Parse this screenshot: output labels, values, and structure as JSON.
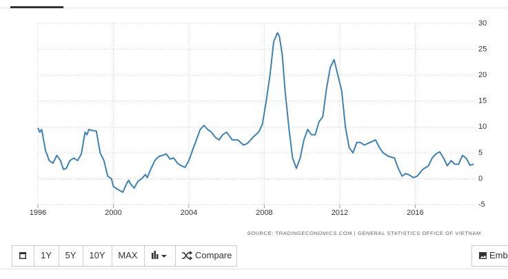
{
  "chart_data": {
    "type": "line",
    "x": [
      1996.0,
      1996.1,
      1996.2,
      1996.4,
      1996.6,
      1996.8,
      1997.0,
      1997.2,
      1997.35,
      1997.5,
      1997.7,
      1997.9,
      1998.1,
      1998.3,
      1998.5,
      1998.6,
      1998.7,
      1998.9,
      1999.1,
      1999.3,
      1999.5,
      1999.7,
      1999.9,
      2000.0,
      2000.2,
      2000.5,
      2000.7,
      2000.8,
      2000.95,
      2001.1,
      2001.3,
      2001.5,
      2001.7,
      2001.8,
      2002.0,
      2002.2,
      2002.4,
      2002.6,
      2002.8,
      2003.0,
      2003.2,
      2003.4,
      2003.6,
      2003.8,
      2004.0,
      2004.2,
      2004.4,
      2004.6,
      2004.8,
      2005.0,
      2005.2,
      2005.4,
      2005.6,
      2005.8,
      2006.0,
      2006.3,
      2006.6,
      2006.9,
      2007.1,
      2007.4,
      2007.7,
      2007.9,
      2008.1,
      2008.3,
      2008.5,
      2008.7,
      2008.8,
      2008.95,
      2009.1,
      2009.3,
      2009.5,
      2009.7,
      2009.9,
      2010.1,
      2010.3,
      2010.5,
      2010.7,
      2010.9,
      2011.1,
      2011.3,
      2011.5,
      2011.7,
      2011.9,
      2012.1,
      2012.3,
      2012.5,
      2012.7,
      2012.9,
      2013.1,
      2013.3,
      2013.6,
      2013.9,
      2014.1,
      2014.3,
      2014.6,
      2014.9,
      2015.1,
      2015.3,
      2015.5,
      2015.7,
      2015.9,
      2016.1,
      2016.4,
      2016.7,
      2016.9,
      2017.1,
      2017.3,
      2017.5,
      2017.7,
      2017.9,
      2018.1,
      2018.3,
      2018.5,
      2018.7,
      2018.9,
      2019.1
    ],
    "series": [
      {
        "color": "#3b81b4",
        "values": [
          9.8,
          9.0,
          9.5,
          5.5,
          3.5,
          3.0,
          4.5,
          3.5,
          1.8,
          2.0,
          3.5,
          4.0,
          3.5,
          4.8,
          9.0,
          8.5,
          9.5,
          9.3,
          9.2,
          5.0,
          3.5,
          0.5,
          0.0,
          -1.5,
          -2.0,
          -2.6,
          -1.0,
          -0.3,
          -1.2,
          -1.8,
          -0.5,
          0.0,
          0.8,
          0.2,
          2.0,
          3.5,
          4.3,
          4.5,
          4.8,
          3.8,
          4.0,
          3.0,
          2.5,
          2.2,
          3.5,
          5.5,
          7.5,
          9.5,
          10.3,
          9.5,
          9.0,
          8.0,
          7.5,
          8.5,
          9.0,
          7.5,
          7.5,
          6.5,
          6.8,
          8.0,
          9.0,
          10.5,
          15.0,
          20.0,
          26.5,
          28.2,
          27.5,
          24.0,
          17.0,
          10.0,
          4.0,
          2.0,
          4.0,
          7.5,
          9.5,
          8.5,
          8.5,
          11.0,
          12.0,
          17.5,
          21.5,
          23.0,
          20.0,
          17.0,
          10.0,
          6.0,
          5.0,
          7.0,
          7.0,
          6.5,
          7.0,
          7.5,
          6.0,
          5.0,
          4.3,
          4.0,
          2.0,
          0.5,
          1.0,
          0.7,
          0.2,
          0.5,
          1.8,
          2.5,
          4.0,
          4.8,
          5.2,
          4.0,
          2.5,
          3.5,
          2.8,
          2.8,
          4.5,
          4.0,
          2.6,
          2.8
        ]
      }
    ],
    "xlim": [
      1996,
      2019.2
    ],
    "xticks": [
      1996,
      2000,
      2004,
      2008,
      2012,
      2016
    ],
    "ylim": [
      -5,
      30
    ],
    "yticks": [
      -5,
      0,
      5,
      10,
      15,
      20,
      25,
      30
    ],
    "grid": true,
    "source": "SOURCE: TRADINGECONOMICS.COM  |  GENERAL STATISTICS OFFICE OF VIETNAM"
  },
  "toolbar": {
    "buttons": [
      "1Y",
      "5Y",
      "10Y",
      "MAX"
    ],
    "compare": "Compare",
    "embed": "Embe"
  }
}
